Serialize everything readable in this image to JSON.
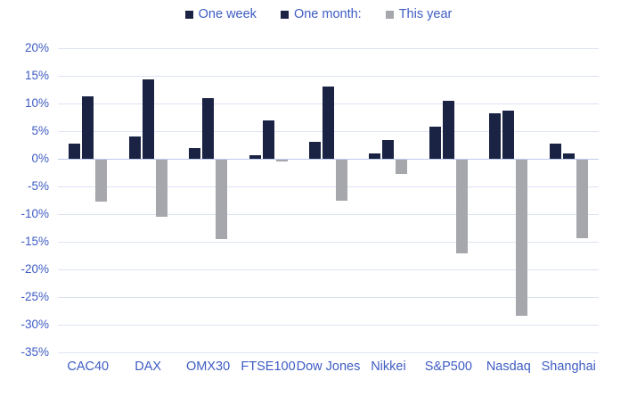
{
  "colors": {
    "navy": "#1a2344",
    "gray": "#a5a7ac",
    "label_blue": "#3e5cc3",
    "gridline": "#dde3f4",
    "zero_line": "#bfcce9",
    "background": "#ffffff"
  },
  "legend": {
    "items": [
      {
        "label": "One week",
        "color_key": "navy"
      },
      {
        "label": "One month:",
        "color_key": "navy"
      },
      {
        "label": "This year",
        "color_key": "gray"
      }
    ]
  },
  "y_axis": {
    "tick_labels": [
      "20%",
      "15%",
      "10%",
      "5%",
      "0%",
      "-5%",
      "-10%",
      "-15%",
      "-20%",
      "-25%",
      "-30%",
      "-35%"
    ]
  },
  "chart_data": {
    "type": "bar",
    "title": "",
    "xlabel": "",
    "ylabel": "",
    "categories": [
      "CAC40",
      "DAX",
      "OMX30",
      "FTSE100",
      "Dow Jones",
      "Nikkei",
      "S&P500",
      "Nasdaq",
      "Shanghai"
    ],
    "series": [
      {
        "name": "One week",
        "color_key": "navy",
        "values": [
          2.8,
          4.1,
          2.0,
          0.6,
          3.1,
          0.9,
          5.8,
          8.2,
          2.7
        ]
      },
      {
        "name": "One month:",
        "color_key": "navy",
        "values": [
          11.3,
          14.3,
          11.0,
          7.0,
          13.0,
          3.4,
          10.5,
          8.7,
          1.0
        ]
      },
      {
        "name": "This year",
        "color_key": "gray",
        "values": [
          -7.5,
          -10.4,
          -14.3,
          -0.4,
          -7.4,
          -2.6,
          -16.9,
          -28.3,
          -14.2
        ]
      }
    ],
    "ylim": [
      -35,
      20
    ],
    "ytick_step": 5,
    "ytick_format": "percent",
    "grid": true,
    "legend_position": "top"
  }
}
